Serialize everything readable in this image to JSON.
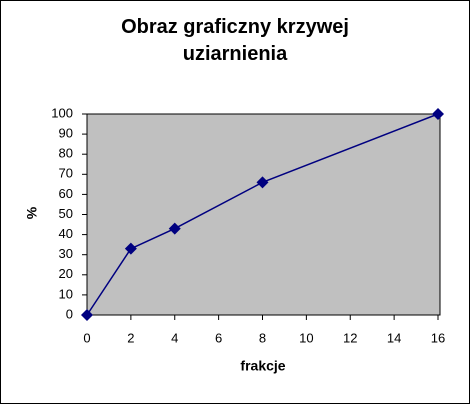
{
  "chart_data": {
    "type": "line",
    "title": "Obraz graficzny krzywej uziarnienia",
    "x_label": "frakcje",
    "y_label": "%",
    "x": [
      0,
      2,
      4,
      8,
      16
    ],
    "values": [
      0,
      33,
      43,
      66,
      100
    ],
    "color": "#000080",
    "plot_background": "#c0c0c0",
    "grid": false,
    "xlim": [
      0,
      16
    ],
    "xticks": [
      0,
      2,
      4,
      6,
      8,
      10,
      12,
      14,
      16
    ],
    "ylim": [
      0,
      100
    ],
    "yticks": [
      0,
      10,
      20,
      30,
      40,
      50,
      60,
      70,
      80,
      90,
      100
    ]
  }
}
